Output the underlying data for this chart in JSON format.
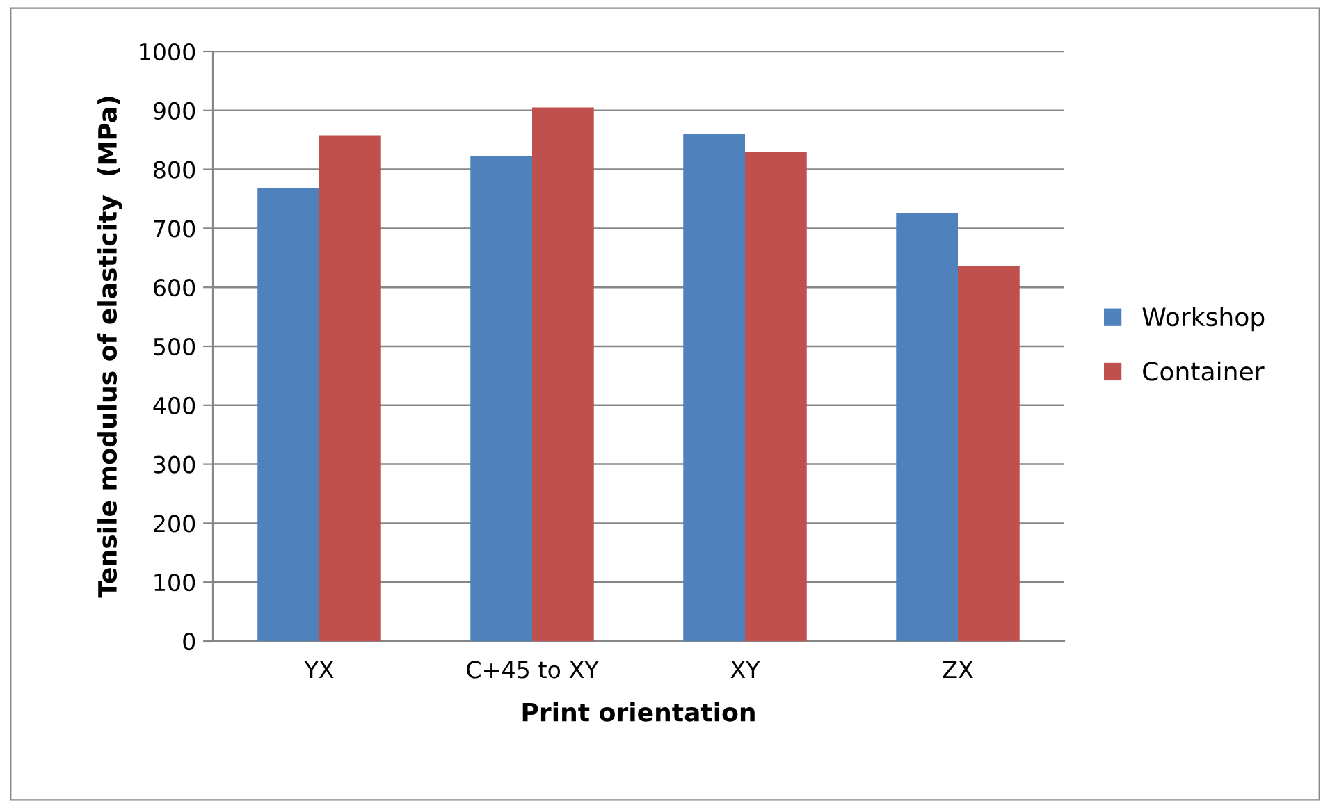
{
  "chart_data": {
    "type": "bar",
    "xlabel": "Print orientation",
    "ylabel": "Tensile modulus of elasticity  (MPa)",
    "categories": [
      "YX",
      "C+45 to XY",
      "XY",
      "ZX"
    ],
    "series": [
      {
        "name": "Workshop",
        "color": "#4f81bd",
        "values": [
          769,
          822,
          860,
          726
        ]
      },
      {
        "name": "Container",
        "color": "#c0504d",
        "values": [
          858,
          905,
          829,
          636
        ]
      }
    ],
    "ylim": [
      0,
      1000
    ],
    "yticks": [
      0,
      100,
      200,
      300,
      400,
      500,
      600,
      700,
      800,
      900,
      1000
    ],
    "grid": "y",
    "legend": "right"
  }
}
